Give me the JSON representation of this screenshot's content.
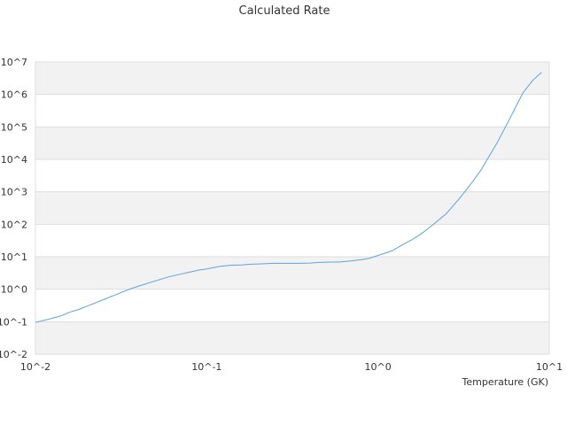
{
  "chart_data": {
    "type": "line",
    "title": "Calculated Rate",
    "xlabel": "Temperature (GK)",
    "ylabel": "",
    "x_scale": "log",
    "y_scale": "log",
    "xlim": [
      0.01,
      10
    ],
    "ylim": [
      0.01,
      10000000
    ],
    "x_ticks": [
      {
        "value": 0.01,
        "label": "10^-2"
      },
      {
        "value": 0.1,
        "label": "10^-1"
      },
      {
        "value": 1,
        "label": "10^0"
      },
      {
        "value": 10,
        "label": "10^1"
      }
    ],
    "y_ticks": [
      {
        "value": 0.01,
        "label": "10^-2"
      },
      {
        "value": 0.1,
        "label": "10^-1"
      },
      {
        "value": 1,
        "label": "10^0"
      },
      {
        "value": 10,
        "label": "10^1"
      },
      {
        "value": 100,
        "label": "10^2"
      },
      {
        "value": 1000,
        "label": "10^3"
      },
      {
        "value": 10000,
        "label": "10^4"
      },
      {
        "value": 100000,
        "label": "10^5"
      },
      {
        "value": 1000000,
        "label": "10^6"
      },
      {
        "value": 10000000,
        "label": "10^7"
      }
    ],
    "grid": true,
    "band_color": "#f2f2f2",
    "grid_color": "#dddddd",
    "line_color": "#5aa4e0",
    "series": [
      {
        "x": [
          0.01,
          0.012,
          0.014,
          0.016,
          0.018,
          0.02,
          0.025,
          0.03,
          0.035,
          0.04,
          0.05,
          0.06,
          0.07,
          0.08,
          0.09,
          0.1,
          0.12,
          0.14,
          0.16,
          0.18,
          0.2,
          0.25,
          0.3,
          0.35,
          0.4,
          0.45,
          0.5,
          0.6,
          0.7,
          0.8,
          0.9,
          1.0,
          1.2,
          1.4,
          1.6,
          1.8,
          2.0,
          2.5,
          3.0,
          3.5,
          4.0,
          5.0,
          6.0,
          7.0,
          8.0,
          9.0
        ],
        "y": [
          0.095,
          0.12,
          0.15,
          0.2,
          0.24,
          0.3,
          0.48,
          0.7,
          0.98,
          1.25,
          1.8,
          2.4,
          2.9,
          3.4,
          3.9,
          4.2,
          5.1,
          5.5,
          5.6,
          5.9,
          6.0,
          6.3,
          6.3,
          6.3,
          6.4,
          6.7,
          6.8,
          6.9,
          7.5,
          8.2,
          9.1,
          11,
          15,
          24,
          35,
          52,
          80,
          210,
          640,
          1800,
          4800,
          35000,
          220000,
          1100000,
          2700000,
          4800000
        ]
      }
    ]
  }
}
